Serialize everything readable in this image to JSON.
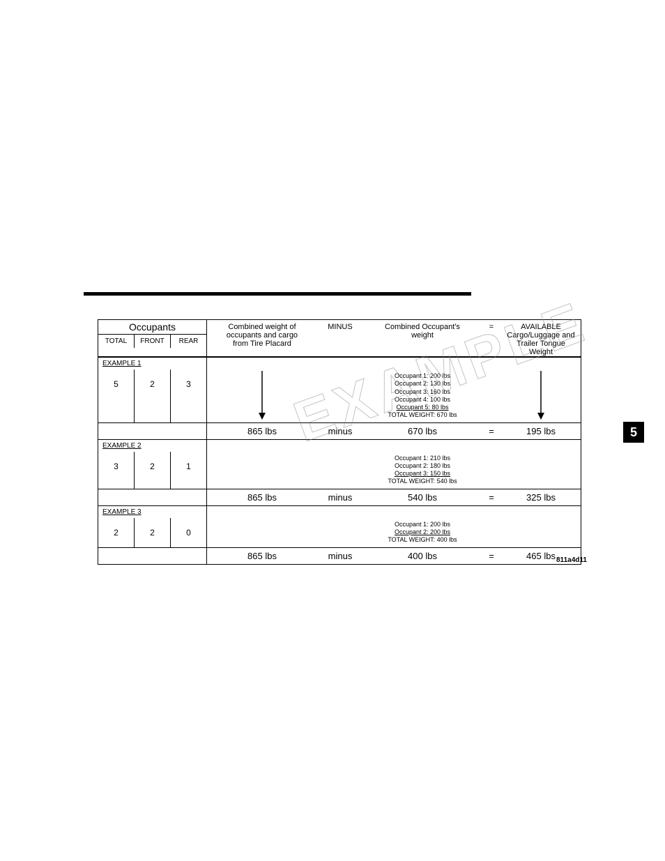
{
  "sideTab": "5",
  "figRef": "811a4d11",
  "watermark": "EXAMPLE",
  "header": {
    "occupantsTitle": "Occupants",
    "total": "TOTAL",
    "front": "FRONT",
    "rear": "REAR",
    "combinedL1": "Combined weight of",
    "combinedL2": "occupants and cargo",
    "combinedL3": "from Tire Placard",
    "minus": "MINUS",
    "occWeightL1": "Combined Occupant's",
    "occWeightL2": "weight",
    "eq": "=",
    "availL1": "AVAILABLE",
    "availL2": "Cargo/Luggage and",
    "availL3": "Trailer Tongue",
    "availL4": "Weight"
  },
  "examples": [
    {
      "label": "EXAMPLE 1",
      "total": "5",
      "front": "2",
      "rear": "3",
      "occupants": [
        "Occupant 1: 200 lbs",
        "Occupant 2: 130 lbs",
        "Occupant 3: 160 lbs",
        "Occupant 4: 100 lbs",
        "Occupant 5:  80 lbs"
      ],
      "occTotal": "TOTAL WEIGHT: 670 lbs",
      "placard": "865 lbs",
      "minus": "minus",
      "combined": "670 lbs",
      "eq": "=",
      "avail": "195 lbs"
    },
    {
      "label": "EXAMPLE 2",
      "total": "3",
      "front": "2",
      "rear": "1",
      "occupants": [
        "Occupant 1: 210 lbs",
        "Occupant 2: 180 lbs",
        "Occupant 3: 150 lbs"
      ],
      "occTotal": "TOTAL WEIGHT: 540 lbs",
      "placard": "865 lbs",
      "minus": "minus",
      "combined": "540 lbs",
      "eq": "=",
      "avail": "325 lbs"
    },
    {
      "label": "EXAMPLE 3",
      "total": "2",
      "front": "2",
      "rear": "0",
      "occupants": [
        "Occupant 1: 200 lbs",
        "Occupant 2: 200 lbs"
      ],
      "occTotal": "TOTAL WEIGHT: 400 lbs",
      "placard": "865 lbs",
      "minus": "minus",
      "combined": "400 lbs",
      "eq": "=",
      "avail": "465 lbs"
    }
  ]
}
